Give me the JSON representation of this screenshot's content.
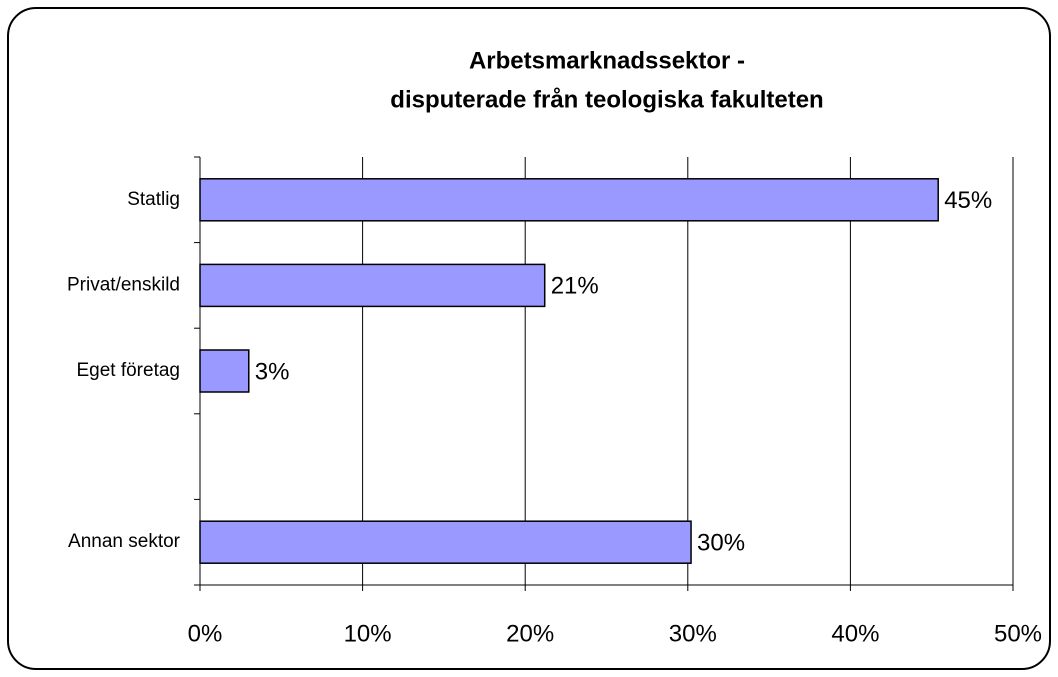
{
  "chart_data": {
    "type": "bar",
    "orientation": "horizontal",
    "title": [
      "Arbetsmarknadssektor -",
      "disputerade från teologiska fakulteten"
    ],
    "categories": [
      "Statlig",
      "Privat/enskild",
      "Eget företag",
      null,
      "Annan sektor"
    ],
    "values": [
      45.4,
      21.2,
      3,
      null,
      30.2
    ],
    "value_labels": [
      "45%",
      "21%",
      "3%",
      null,
      "30%"
    ],
    "color": "#9999ff",
    "xlim": [
      0,
      50
    ],
    "xticks": [
      {
        "value": 0,
        "label": "0%"
      },
      {
        "value": 10,
        "label": "10%"
      },
      {
        "value": 20,
        "label": "20%"
      },
      {
        "value": 30,
        "label": "30%"
      },
      {
        "value": 40,
        "label": "40%"
      },
      {
        "value": 50,
        "label": "50%"
      }
    ],
    "grid": true
  }
}
